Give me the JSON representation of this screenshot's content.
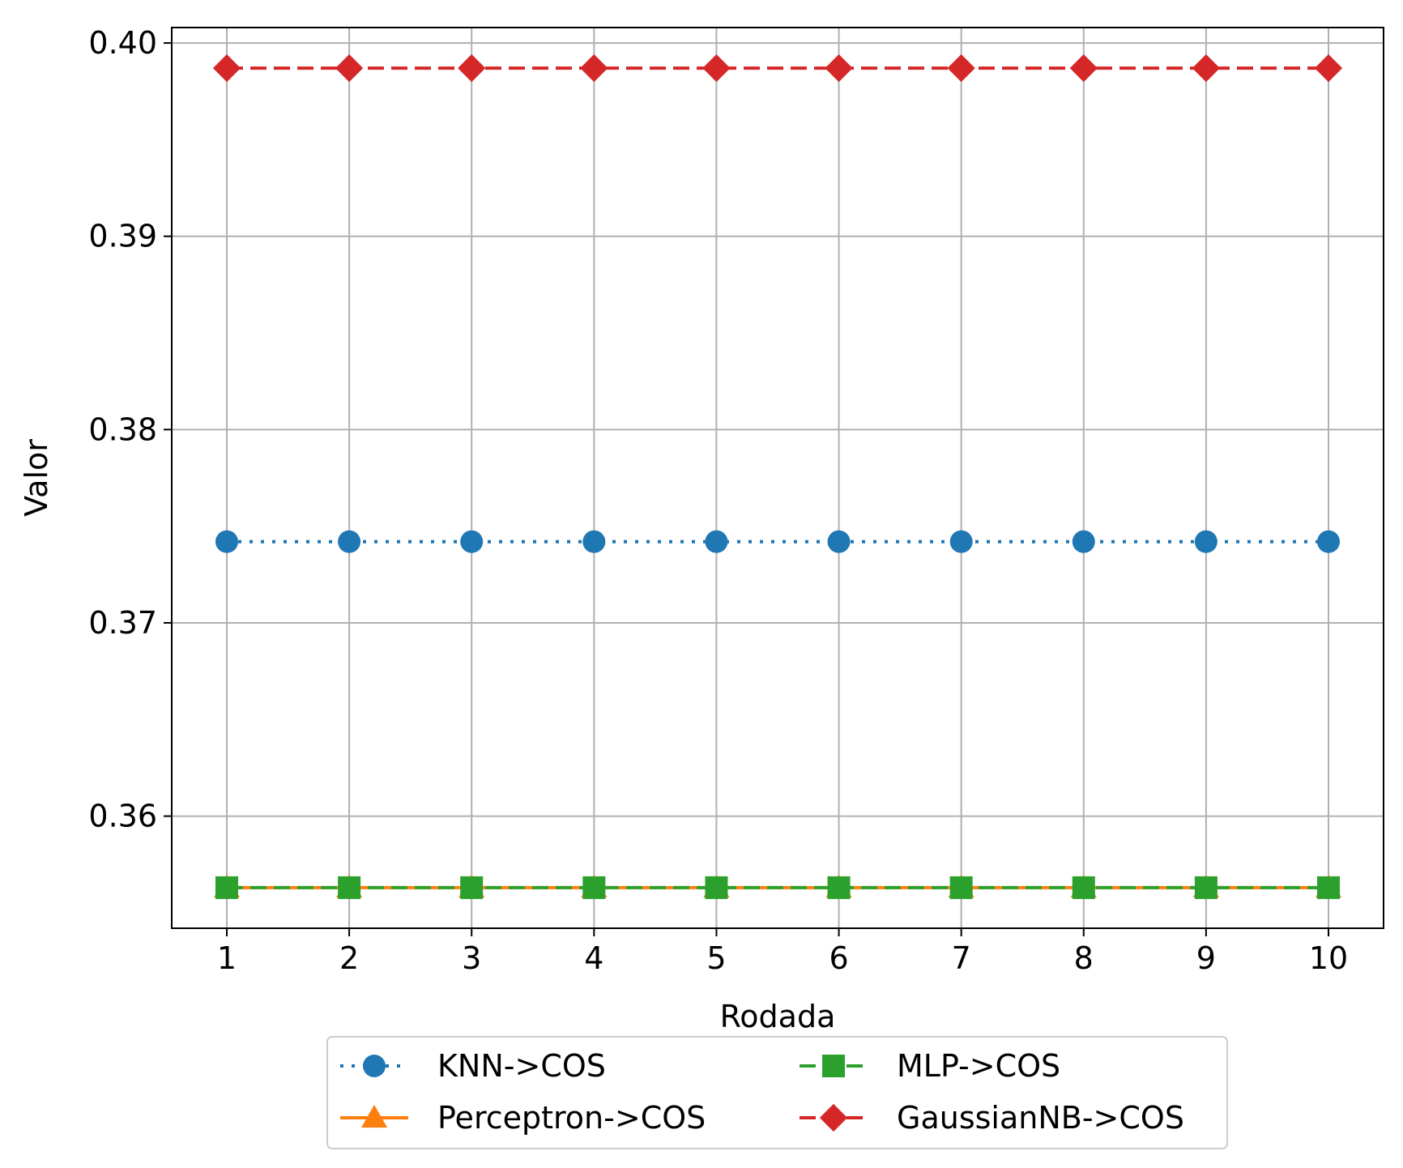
{
  "chart_data": {
    "type": "line",
    "xlabel": "Rodada",
    "ylabel": "Valor",
    "x": [
      1,
      2,
      3,
      4,
      5,
      6,
      7,
      8,
      9,
      10
    ],
    "x_ticks": [
      "1",
      "2",
      "3",
      "4",
      "5",
      "6",
      "7",
      "8",
      "9",
      "10"
    ],
    "y_ticks": [
      "0.36",
      "0.37",
      "0.38",
      "0.39",
      "0.40"
    ],
    "xlim": [
      0.55,
      10.45
    ],
    "ylim": [
      0.3542,
      0.4008
    ],
    "grid": true,
    "legend_position": "bottom-center-outside",
    "series": [
      {
        "name": "KNN->COS",
        "values": [
          0.3742,
          0.3742,
          0.3742,
          0.3742,
          0.3742,
          0.3742,
          0.3742,
          0.3742,
          0.3742,
          0.3742
        ],
        "color": "#1f77b4",
        "marker": "circle",
        "linestyle": "dotted"
      },
      {
        "name": "Perceptron->COS",
        "values": [
          0.3563,
          0.3563,
          0.3563,
          0.3563,
          0.3563,
          0.3563,
          0.3563,
          0.3563,
          0.3563,
          0.3563
        ],
        "color": "#ff7f0e",
        "marker": "triangle",
        "linestyle": "solid"
      },
      {
        "name": "MLP->COS",
        "values": [
          0.3563,
          0.3563,
          0.3563,
          0.3563,
          0.3563,
          0.3563,
          0.3563,
          0.3563,
          0.3563,
          0.3563
        ],
        "color": "#2ca02c",
        "marker": "square",
        "linestyle": "dashed"
      },
      {
        "name": "GaussianNB->COS",
        "values": [
          0.3987,
          0.3987,
          0.3987,
          0.3987,
          0.3987,
          0.3987,
          0.3987,
          0.3987,
          0.3987,
          0.3987
        ],
        "color": "#d62728",
        "marker": "diamond",
        "linestyle": "dashed"
      }
    ]
  }
}
